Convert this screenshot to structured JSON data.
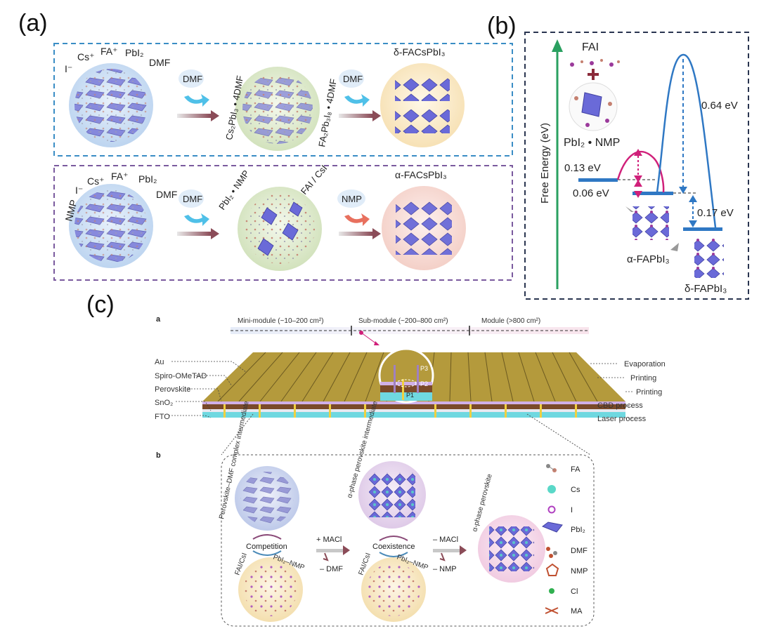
{
  "panels": {
    "a": {
      "label": "(a)",
      "top_row": {
        "species": [
          "I⁻",
          "Cs⁺",
          "FA⁺",
          "PbI₂",
          "DMF"
        ],
        "solvent1": "DMF",
        "intermediate_left": "Cs₂PbI₃ • 4DMF",
        "intermediate_right": "FA₂Pb₃I₈ • 4DMF",
        "solvent2": "DMF",
        "product": "δ-FACsPbI₃"
      },
      "bottom_row": {
        "species": [
          "NMP",
          "I⁻",
          "Cs⁺",
          "FA⁺",
          "PbI₂",
          "DMF"
        ],
        "solvent1": "DMF",
        "intermediate_left": "PbI₂ • NMP",
        "intermediate_right": "FAI / CsI",
        "solvent2": "NMP",
        "product": "α-FACsPbI₃"
      }
    },
    "b": {
      "label": "(b)",
      "y_axis_label": "Free Energy (eV)",
      "reactant_top": "FAI",
      "reactant_bottom": "PbI₂ • NMP",
      "energies": {
        "barrier_small": "0.13 eV",
        "step_small": "0.06 eV",
        "barrier_large": "0.64 eV",
        "step_large": "0.17 eV"
      },
      "product_alpha": "α-FAPbI₃",
      "product_delta": "δ-FAPbI₃"
    },
    "c": {
      "label": "(c)",
      "sub_a": "a",
      "sub_b": "b",
      "scale": {
        "mini": "Mini-module (~10–200 cm²)",
        "sub": "Sub-module (~200–800 cm²)",
        "module": "Module (>800 cm²)"
      },
      "layers_left": [
        "Au",
        "Spiro-OMeTAD",
        "Perovskite",
        "SnO₂",
        "FTO"
      ],
      "processes_right": [
        "Evaporation",
        "Printing",
        "Printing",
        "CBD process",
        "Laser process"
      ],
      "scribes": [
        "P3",
        "P2",
        "P1"
      ],
      "flow": {
        "complex_intermediate": "Perovskite–DMF complex intermediate",
        "competition": "Competition",
        "precursor_left": "FAI/CsI",
        "precursor_right": "PbI₂–NMP",
        "add_maci": "+ MACl",
        "remove_dmf": "– DMF",
        "alpha_intermediate": "α-phase perovskite intermediate",
        "coexistence": "Coexistence",
        "remove_macl": "– MACl",
        "remove_nmp": "– NMP",
        "alpha_perovskite": "α-phase perovskite"
      },
      "legend": [
        "FA",
        "Cs",
        "I",
        "PbI₂",
        "DMF",
        "NMP",
        "Cl",
        "MA"
      ]
    }
  },
  "colors": {
    "blue_dash": "#3a8dc5",
    "purple_dash": "#7a5a9e",
    "navy_dash": "#2a3550",
    "octahedron": "#6a6ad8",
    "arrow_green": "#2aa060",
    "curve_magenta": "#d0207a",
    "curve_blue": "#2f78c4",
    "gold": "#b49a3c"
  }
}
